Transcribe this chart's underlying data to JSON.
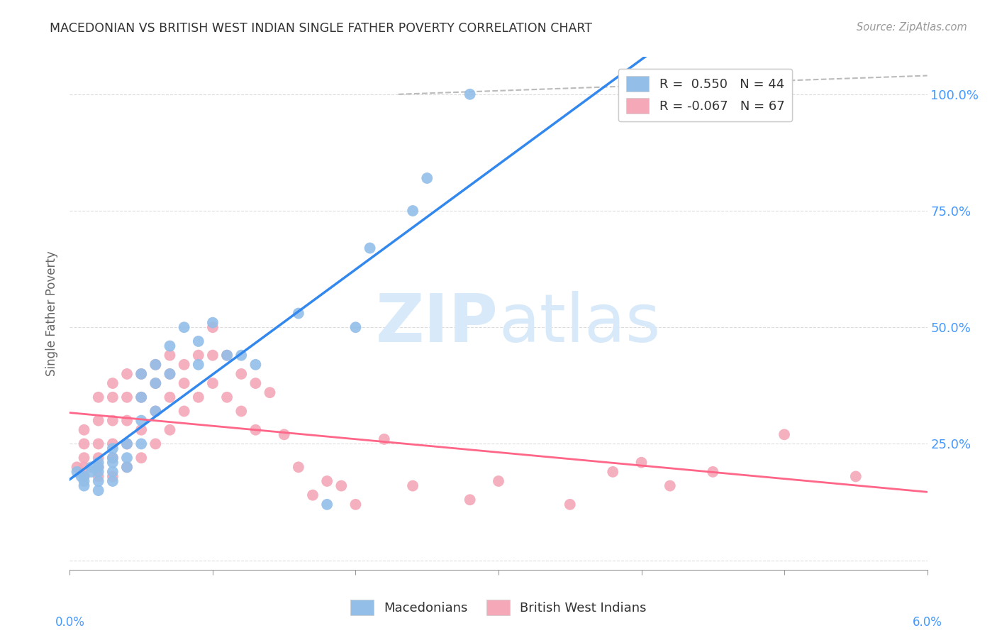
{
  "title": "MACEDONIAN VS BRITISH WEST INDIAN SINGLE FATHER POVERTY CORRELATION CHART",
  "source": "Source: ZipAtlas.com",
  "ylabel": "Single Father Poverty",
  "xlim": [
    0.0,
    0.06
  ],
  "ylim": [
    -0.02,
    1.08
  ],
  "blue_color": "#92BEE8",
  "pink_color": "#F4A8B8",
  "blue_line_color": "#3388EE",
  "pink_line_color": "#FF6688",
  "dashed_line_color": "#BBBBBB",
  "watermark_text": "ZIPatlas",
  "watermark_color": "#D8EAFA",
  "grid_color": "#DDDDDD",
  "background_color": "#FFFFFF",
  "title_color": "#333333",
  "axis_label_color": "#666666",
  "right_tick_color": "#4499FF",
  "legend_blue_R": "R =  0.550",
  "legend_blue_N": "N = 44",
  "legend_pink_R": "R = -0.067",
  "legend_pink_N": "N = 67",
  "mac_x": [
    0.0005,
    0.0008,
    0.001,
    0.001,
    0.001,
    0.0015,
    0.0015,
    0.002,
    0.002,
    0.002,
    0.002,
    0.002,
    0.003,
    0.003,
    0.003,
    0.003,
    0.003,
    0.004,
    0.004,
    0.004,
    0.005,
    0.005,
    0.005,
    0.005,
    0.006,
    0.006,
    0.006,
    0.007,
    0.007,
    0.008,
    0.009,
    0.009,
    0.01,
    0.011,
    0.012,
    0.013,
    0.016,
    0.018,
    0.02,
    0.021,
    0.024,
    0.025,
    0.028,
    0.04
  ],
  "mac_y": [
    0.19,
    0.18,
    0.18,
    0.17,
    0.16,
    0.2,
    0.19,
    0.21,
    0.2,
    0.19,
    0.17,
    0.15,
    0.24,
    0.22,
    0.21,
    0.19,
    0.17,
    0.25,
    0.22,
    0.2,
    0.4,
    0.35,
    0.3,
    0.25,
    0.42,
    0.38,
    0.32,
    0.46,
    0.4,
    0.5,
    0.47,
    0.42,
    0.51,
    0.44,
    0.44,
    0.42,
    0.53,
    0.12,
    0.5,
    0.67,
    0.75,
    0.82,
    1.0,
    1.0
  ],
  "bwi_x": [
    0.0005,
    0.001,
    0.001,
    0.001,
    0.001,
    0.001,
    0.002,
    0.002,
    0.002,
    0.002,
    0.002,
    0.002,
    0.003,
    0.003,
    0.003,
    0.003,
    0.003,
    0.003,
    0.004,
    0.004,
    0.004,
    0.004,
    0.004,
    0.005,
    0.005,
    0.005,
    0.005,
    0.006,
    0.006,
    0.006,
    0.006,
    0.007,
    0.007,
    0.007,
    0.007,
    0.008,
    0.008,
    0.008,
    0.009,
    0.009,
    0.01,
    0.01,
    0.01,
    0.011,
    0.011,
    0.012,
    0.012,
    0.013,
    0.013,
    0.014,
    0.015,
    0.016,
    0.017,
    0.018,
    0.019,
    0.02,
    0.022,
    0.024,
    0.028,
    0.03,
    0.035,
    0.038,
    0.04,
    0.042,
    0.045,
    0.05,
    0.055
  ],
  "bwi_y": [
    0.2,
    0.28,
    0.25,
    0.22,
    0.2,
    0.18,
    0.35,
    0.3,
    0.25,
    0.22,
    0.2,
    0.18,
    0.38,
    0.35,
    0.3,
    0.25,
    0.22,
    0.18,
    0.4,
    0.35,
    0.3,
    0.25,
    0.2,
    0.4,
    0.35,
    0.28,
    0.22,
    0.42,
    0.38,
    0.32,
    0.25,
    0.44,
    0.4,
    0.35,
    0.28,
    0.42,
    0.38,
    0.32,
    0.44,
    0.35,
    0.5,
    0.44,
    0.38,
    0.44,
    0.35,
    0.4,
    0.32,
    0.38,
    0.28,
    0.36,
    0.27,
    0.2,
    0.14,
    0.17,
    0.16,
    0.12,
    0.26,
    0.16,
    0.13,
    0.17,
    0.12,
    0.19,
    0.21,
    0.16,
    0.19,
    0.27,
    0.18
  ]
}
